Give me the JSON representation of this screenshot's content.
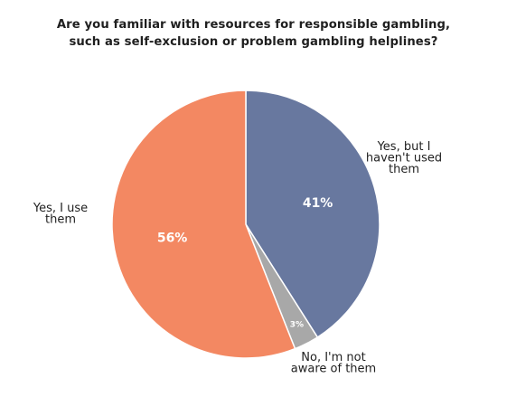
{
  "chart_data": {
    "type": "pie",
    "title": [
      "Are you familiar with resources for responsible gambling,",
      "such as self-exclusion or problem gambling helplines?"
    ],
    "slices": [
      {
        "label": [
          "Yes, but I",
          "haven't used",
          "them"
        ],
        "value": 41,
        "value_label": "41%",
        "color": "#68789f"
      },
      {
        "label": [
          "No, I'm not",
          "aware of them"
        ],
        "value": 3,
        "value_label": "3%",
        "color": "#a8a8a8"
      },
      {
        "label": [
          "Yes, I use",
          "them"
        ],
        "value": 56,
        "value_label": "56%",
        "color": "#f38862"
      }
    ],
    "start_angle": "12 o'clock",
    "direction": "clockwise"
  }
}
